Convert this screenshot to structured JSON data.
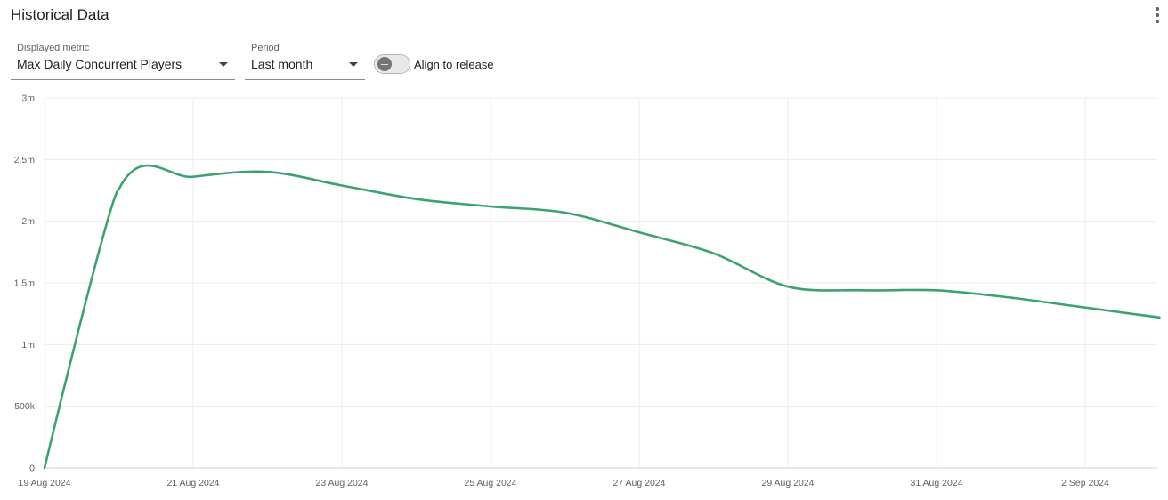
{
  "header": {
    "title": "Historical Data",
    "menu_icon": "more-vert-icon"
  },
  "controls": {
    "metric": {
      "label": "Displayed metric",
      "value": "Max Daily Concurrent Players"
    },
    "period": {
      "label": "Period",
      "value": "Last month"
    },
    "align_toggle": {
      "label": "Align to release",
      "checked": false
    }
  },
  "chart_data": {
    "type": "line",
    "title": "",
    "xlabel": "",
    "ylabel": "",
    "ylim": [
      0,
      3000000
    ],
    "xlim": [
      "2024-08-19",
      "2024-09-03"
    ],
    "grid": true,
    "legend": "none",
    "line_color": "#3da271",
    "y_ticks": [
      {
        "value": 0,
        "label": "0"
      },
      {
        "value": 500000,
        "label": "500k"
      },
      {
        "value": 1000000,
        "label": "1m"
      },
      {
        "value": 1500000,
        "label": "1.5m"
      },
      {
        "value": 2000000,
        "label": "2m"
      },
      {
        "value": 2500000,
        "label": "2.5m"
      },
      {
        "value": 3000000,
        "label": "3m"
      }
    ],
    "x_ticks": [
      {
        "value": "2024-08-19",
        "label": "19 Aug 2024"
      },
      {
        "value": "2024-08-21",
        "label": "21 Aug 2024"
      },
      {
        "value": "2024-08-23",
        "label": "23 Aug 2024"
      },
      {
        "value": "2024-08-25",
        "label": "25 Aug 2024"
      },
      {
        "value": "2024-08-27",
        "label": "27 Aug 2024"
      },
      {
        "value": "2024-08-29",
        "label": "29 Aug 2024"
      },
      {
        "value": "2024-08-31",
        "label": "31 Aug 2024"
      },
      {
        "value": "2024-09-02",
        "label": "2 Sep 2024"
      }
    ],
    "series": [
      {
        "x": [
          "2024-08-19",
          "2024-08-20",
          "2024-08-21",
          "2024-08-22",
          "2024-08-23",
          "2024-08-24",
          "2024-08-25",
          "2024-08-26",
          "2024-08-27",
          "2024-08-28",
          "2024-08-29",
          "2024-08-30",
          "2024-08-31",
          "2024-09-01",
          "2024-09-02",
          "2024-09-03"
        ],
        "y": [
          0,
          2260000,
          2360000,
          2400000,
          2290000,
          2180000,
          2120000,
          2070000,
          1910000,
          1740000,
          1470000,
          1440000,
          1440000,
          1380000,
          1300000,
          1220000
        ]
      }
    ]
  }
}
